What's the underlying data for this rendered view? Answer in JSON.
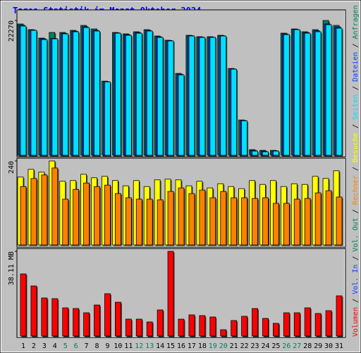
{
  "chart_data": [
    {
      "type": "bar",
      "title": "Tages-Statistik im Monat Oktober 2024",
      "categories": [
        "1",
        "2",
        "3",
        "4",
        "5",
        "6",
        "7",
        "8",
        "9",
        "10",
        "11",
        "12",
        "13",
        "14",
        "15",
        "16",
        "17",
        "18",
        "19",
        "20",
        "21",
        "22",
        "23",
        "24",
        "25",
        "26",
        "27",
        "28",
        "29",
        "30",
        "31"
      ],
      "category_colors": [
        "#000000",
        "#000000",
        "#000000",
        "#000000",
        "#00805c",
        "#00805c",
        "#000000",
        "#000000",
        "#000000",
        "#000000",
        "#000000",
        "#00805c",
        "#00805c",
        "#000000",
        "#000000",
        "#000000",
        "#000000",
        "#000000",
        "#00805c",
        "#00805c",
        "#000000",
        "#000000",
        "#000000",
        "#000000",
        "#000000",
        "#00805c",
        "#00805c",
        "#000000",
        "#000000",
        "#000000",
        "#000000"
      ],
      "ylim": [
        0,
        22270
      ],
      "yticks": [
        22270
      ],
      "series": [
        {
          "name": "Anfragen",
          "color": "#00805c",
          "values": [
            21688,
            20755,
            19356,
            20288,
            20288,
            20638,
            21454,
            20871,
            12243,
            20288,
            20055,
            20405,
            20755,
            19706,
            19006,
            13526,
            19822,
            19589,
            19589,
            19822,
            14342,
            5830,
            933,
            816,
            816,
            20172,
            20871,
            20405,
            20755,
            22270,
            21454
          ]
        },
        {
          "name": "Dateien",
          "color": "#0040ff",
          "values": [
            21500,
            20700,
            19250,
            19300,
            20150,
            20500,
            21250,
            20650,
            12180,
            20230,
            19930,
            20280,
            20630,
            19580,
            18950,
            13400,
            19760,
            19520,
            19520,
            19760,
            14280,
            5770,
            820,
            700,
            760,
            20050,
            20800,
            20280,
            20580,
            21700,
            21200
          ]
        },
        {
          "name": "Seiten",
          "color": "#00e0ff",
          "values": [
            21338,
            20638,
            19122,
            19239,
            20055,
            20405,
            21105,
            20522,
            12126,
            20172,
            19822,
            20172,
            20522,
            19472,
            18889,
            13292,
            19706,
            19472,
            19472,
            19706,
            14225,
            5713,
            700,
            583,
            700,
            19939,
            20755,
            20172,
            20405,
            21571,
            20988
          ]
        }
      ]
    },
    {
      "type": "bar",
      "ylim": [
        0,
        240
      ],
      "yticks": [
        240
      ],
      "series": [
        {
          "name": "Besuche",
          "color": "#ffff00",
          "values": [
            194,
            216,
            208,
            240,
            182,
            184,
            202,
            192,
            196,
            184,
            169,
            184,
            167,
            186,
            188,
            186,
            169,
            182,
            163,
            175,
            167,
            161,
            184,
            173,
            184,
            167,
            175,
            173,
            196,
            190,
            212
          ]
        },
        {
          "name": "Rechner",
          "color": "#ff8000",
          "values": [
            167,
            190,
            200,
            220,
            131,
            159,
            177,
            167,
            171,
            147,
            135,
            131,
            131,
            129,
            153,
            163,
            147,
            157,
            135,
            153,
            135,
            135,
            133,
            135,
            119,
            119,
            131,
            133,
            149,
            155,
            137
          ]
        }
      ]
    },
    {
      "type": "bar",
      "ylim": [
        0,
        38.11
      ],
      "yticks": [
        {
          "value": 38.11,
          "label": "38.11 MB"
        }
      ],
      "series": [
        {
          "name": "Volumen",
          "color": "#ff0000",
          "values": [
            27.95,
            22.55,
            17.15,
            16.83,
            12.7,
            12.39,
            10.48,
            13.97,
            19.06,
            15.24,
            7.62,
            7.62,
            6.35,
            11.75,
            38.11,
            7.62,
            9.53,
            9.21,
            8.58,
            2.86,
            6.99,
            8.89,
            12.39,
            7.94,
            5.72,
            10.48,
            10.48,
            12.7,
            10.16,
            11.43,
            18.1
          ]
        }
      ],
      "legend_extra": [
        {
          "name": "Vol. In",
          "color": "#0040ff"
        },
        {
          "name": "Vol. Out",
          "color": "#00805c"
        }
      ]
    }
  ],
  "legend_separator": "/",
  "legend_separator_color": "#000000"
}
